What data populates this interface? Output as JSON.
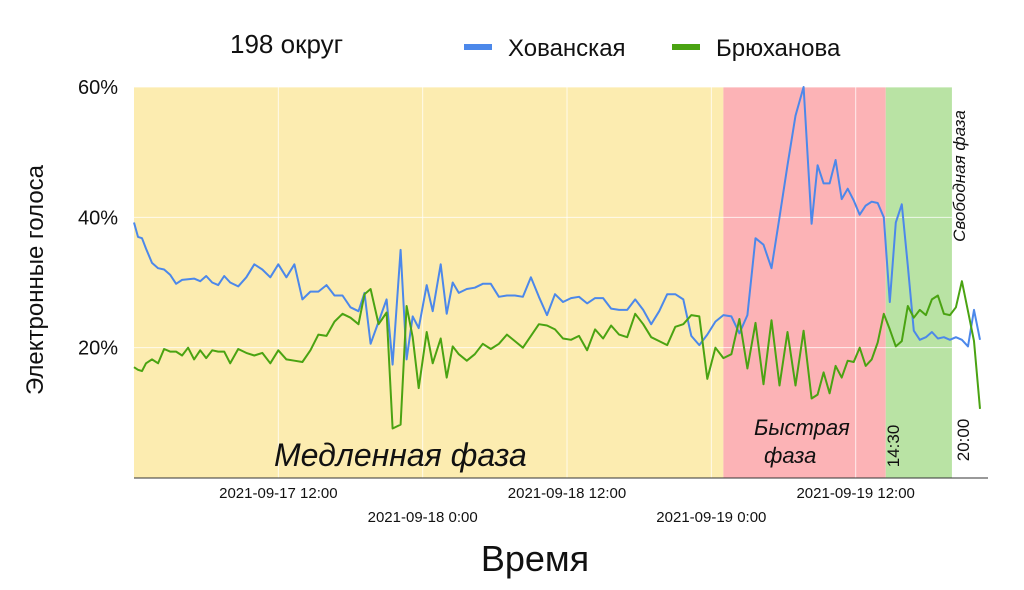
{
  "chart_data": {
    "type": "line",
    "title": "198 округ",
    "xlabel": "Время",
    "ylabel": "Электронные голоса",
    "ylim": [
      0,
      60
    ],
    "x_start": "2021-09-17 00:00",
    "x_end": "2021-09-19 23:00",
    "yticks": [
      "60%",
      "40%",
      "20%"
    ],
    "ytick_values": [
      60,
      40,
      20
    ],
    "xticks": [
      {
        "label": "2021-09-17 12:00",
        "x": "2021-09-17 12:00",
        "row": 1
      },
      {
        "label": "2021-09-18 0:00",
        "x": "2021-09-18 00:00",
        "row": 2
      },
      {
        "label": "2021-09-18 12:00",
        "x": "2021-09-18 12:00",
        "row": 1
      },
      {
        "label": "2021-09-19 0:00",
        "x": "2021-09-19 00:00",
        "row": 2
      },
      {
        "label": "2021-09-19 12:00",
        "x": "2021-09-19 12:00",
        "row": 1
      }
    ],
    "legend": {
      "position": "top"
    },
    "phases": [
      {
        "label": "Медленная фаза",
        "from": "2021-09-17 00:00",
        "to": "2021-09-19 01:00",
        "color": "#fcecb0"
      },
      {
        "label_lines": [
          "Быстрая",
          "фаза"
        ],
        "from": "2021-09-19 01:00",
        "to": "2021-09-19 14:30",
        "color": "#fcb3b6",
        "marker": "14:30"
      },
      {
        "label": "Свободная фаза",
        "from": "2021-09-19 14:30",
        "to": "2021-09-19 20:00",
        "color": "#b9e3a4",
        "marker": "20:00"
      }
    ],
    "series": [
      {
        "name": "Хованская",
        "color": "#4c88ea",
        "points": [
          [
            "2021-09-17 00:00",
            39.2
          ],
          [
            "2021-09-17 00:20",
            37.0
          ],
          [
            "2021-09-17 00:40",
            36.8
          ],
          [
            "2021-09-17 01:00",
            35.2
          ],
          [
            "2021-09-17 01:30",
            33.0
          ],
          [
            "2021-09-17 02:00",
            32.2
          ],
          [
            "2021-09-17 02:30",
            32.0
          ],
          [
            "2021-09-17 03:00",
            31.2
          ],
          [
            "2021-09-17 03:30",
            29.8
          ],
          [
            "2021-09-17 04:00",
            30.4
          ],
          [
            "2021-09-17 05:00",
            30.6
          ],
          [
            "2021-09-17 05:30",
            30.2
          ],
          [
            "2021-09-17 06:00",
            31.0
          ],
          [
            "2021-09-17 06:30",
            30.0
          ],
          [
            "2021-09-17 07:00",
            29.6
          ],
          [
            "2021-09-17 07:30",
            31.0
          ],
          [
            "2021-09-17 08:00",
            30.0
          ],
          [
            "2021-09-17 08:40",
            29.4
          ],
          [
            "2021-09-17 09:20",
            30.8
          ],
          [
            "2021-09-17 10:00",
            32.8
          ],
          [
            "2021-09-17 10:40",
            32.0
          ],
          [
            "2021-09-17 11:20",
            30.8
          ],
          [
            "2021-09-17 12:00",
            32.8
          ],
          [
            "2021-09-17 12:40",
            30.8
          ],
          [
            "2021-09-17 13:20",
            32.8
          ],
          [
            "2021-09-17 14:00",
            27.4
          ],
          [
            "2021-09-17 14:40",
            28.6
          ],
          [
            "2021-09-17 15:20",
            28.6
          ],
          [
            "2021-09-17 16:00",
            29.6
          ],
          [
            "2021-09-17 16:40",
            28.0
          ],
          [
            "2021-09-17 17:20",
            28.0
          ],
          [
            "2021-09-17 18:00",
            26.2
          ],
          [
            "2021-09-17 18:40",
            25.6
          ],
          [
            "2021-09-17 19:10",
            28.4
          ],
          [
            "2021-09-17 19:40",
            20.6
          ],
          [
            "2021-09-17 20:20",
            24.0
          ],
          [
            "2021-09-17 21:00",
            27.4
          ],
          [
            "2021-09-17 21:30",
            17.4
          ],
          [
            "2021-09-17 22:10",
            35.0
          ],
          [
            "2021-09-17 22:40",
            18.2
          ],
          [
            "2021-09-17 23:10",
            24.8
          ],
          [
            "2021-09-17 23:40",
            23.0
          ],
          [
            "2021-09-18 00:20",
            29.6
          ],
          [
            "2021-09-18 00:50",
            25.6
          ],
          [
            "2021-09-18 01:30",
            32.8
          ],
          [
            "2021-09-18 02:00",
            25.2
          ],
          [
            "2021-09-18 02:30",
            30.0
          ],
          [
            "2021-09-18 03:00",
            28.4
          ],
          [
            "2021-09-18 03:40",
            29.0
          ],
          [
            "2021-09-18 04:20",
            29.2
          ],
          [
            "2021-09-18 05:00",
            29.8
          ],
          [
            "2021-09-18 05:40",
            29.8
          ],
          [
            "2021-09-18 06:20",
            27.8
          ],
          [
            "2021-09-18 07:00",
            28.0
          ],
          [
            "2021-09-18 07:40",
            28.0
          ],
          [
            "2021-09-18 08:20",
            27.8
          ],
          [
            "2021-09-18 09:00",
            30.8
          ],
          [
            "2021-09-18 09:40",
            27.8
          ],
          [
            "2021-09-18 10:20",
            25.0
          ],
          [
            "2021-09-18 11:00",
            28.2
          ],
          [
            "2021-09-18 11:40",
            27.0
          ],
          [
            "2021-09-18 12:20",
            27.6
          ],
          [
            "2021-09-18 13:00",
            27.8
          ],
          [
            "2021-09-18 13:40",
            26.8
          ],
          [
            "2021-09-18 14:20",
            27.6
          ],
          [
            "2021-09-18 15:00",
            27.6
          ],
          [
            "2021-09-18 15:40",
            26.0
          ],
          [
            "2021-09-18 16:20",
            25.8
          ],
          [
            "2021-09-18 17:00",
            25.8
          ],
          [
            "2021-09-18 17:40",
            27.4
          ],
          [
            "2021-09-18 18:20",
            25.8
          ],
          [
            "2021-09-18 19:00",
            23.6
          ],
          [
            "2021-09-18 19:40",
            25.6
          ],
          [
            "2021-09-18 20:20",
            28.2
          ],
          [
            "2021-09-18 21:00",
            28.2
          ],
          [
            "2021-09-18 21:40",
            27.4
          ],
          [
            "2021-09-18 22:20",
            21.8
          ],
          [
            "2021-09-18 23:00",
            20.4
          ],
          [
            "2021-09-18 23:40",
            22.0
          ],
          [
            "2021-09-19 00:20",
            24.0
          ],
          [
            "2021-09-19 01:00",
            25.0
          ],
          [
            "2021-09-19 01:40",
            24.8
          ],
          [
            "2021-09-19 02:20",
            22.2
          ],
          [
            "2021-09-19 03:00",
            25.0
          ],
          [
            "2021-09-19 03:40",
            36.8
          ],
          [
            "2021-09-19 04:20",
            35.8
          ],
          [
            "2021-09-19 05:00",
            32.2
          ],
          [
            "2021-09-19 05:40",
            40.0
          ],
          [
            "2021-09-19 06:20",
            48.0
          ],
          [
            "2021-09-19 07:00",
            55.6
          ],
          [
            "2021-09-19 07:40",
            60.0
          ],
          [
            "2021-09-19 08:20",
            39.0
          ],
          [
            "2021-09-19 08:50",
            48.0
          ],
          [
            "2021-09-19 09:20",
            45.2
          ],
          [
            "2021-09-19 09:50",
            45.2
          ],
          [
            "2021-09-19 10:20",
            48.8
          ],
          [
            "2021-09-19 10:50",
            42.8
          ],
          [
            "2021-09-19 11:20",
            44.4
          ],
          [
            "2021-09-19 11:50",
            42.6
          ],
          [
            "2021-09-19 12:20",
            40.4
          ],
          [
            "2021-09-19 12:50",
            41.8
          ],
          [
            "2021-09-19 13:20",
            42.4
          ],
          [
            "2021-09-19 13:50",
            42.2
          ],
          [
            "2021-09-19 14:20",
            40.0
          ],
          [
            "2021-09-19 14:50",
            27.0
          ],
          [
            "2021-09-19 15:20",
            39.2
          ],
          [
            "2021-09-19 15:50",
            42.0
          ],
          [
            "2021-09-19 16:20",
            32.6
          ],
          [
            "2021-09-19 16:50",
            22.6
          ],
          [
            "2021-09-19 17:20",
            21.2
          ],
          [
            "2021-09-19 17:50",
            21.6
          ],
          [
            "2021-09-19 18:20",
            22.4
          ],
          [
            "2021-09-19 18:50",
            21.4
          ],
          [
            "2021-09-19 19:20",
            21.6
          ],
          [
            "2021-09-19 19:50",
            21.2
          ],
          [
            "2021-09-19 20:20",
            21.6
          ],
          [
            "2021-09-19 20:50",
            21.2
          ],
          [
            "2021-09-19 21:20",
            20.2
          ],
          [
            "2021-09-19 21:50",
            25.8
          ],
          [
            "2021-09-19 22:20",
            21.2
          ]
        ]
      },
      {
        "name": "Брюханова",
        "color": "#4aa312",
        "points": [
          [
            "2021-09-17 00:00",
            17.0
          ],
          [
            "2021-09-17 00:20",
            16.6
          ],
          [
            "2021-09-17 00:40",
            16.4
          ],
          [
            "2021-09-17 01:00",
            17.6
          ],
          [
            "2021-09-17 01:30",
            18.2
          ],
          [
            "2021-09-17 02:00",
            17.6
          ],
          [
            "2021-09-17 02:30",
            19.8
          ],
          [
            "2021-09-17 03:00",
            19.4
          ],
          [
            "2021-09-17 03:30",
            19.4
          ],
          [
            "2021-09-17 04:00",
            18.8
          ],
          [
            "2021-09-17 04:30",
            20.0
          ],
          [
            "2021-09-17 05:00",
            18.2
          ],
          [
            "2021-09-17 05:30",
            19.6
          ],
          [
            "2021-09-17 06:00",
            18.4
          ],
          [
            "2021-09-17 06:30",
            19.6
          ],
          [
            "2021-09-17 07:00",
            19.4
          ],
          [
            "2021-09-17 07:30",
            19.4
          ],
          [
            "2021-09-17 08:00",
            17.6
          ],
          [
            "2021-09-17 08:40",
            19.8
          ],
          [
            "2021-09-17 09:20",
            19.2
          ],
          [
            "2021-09-17 10:00",
            18.8
          ],
          [
            "2021-09-17 10:40",
            19.2
          ],
          [
            "2021-09-17 11:20",
            17.6
          ],
          [
            "2021-09-17 12:00",
            19.6
          ],
          [
            "2021-09-17 12:40",
            18.2
          ],
          [
            "2021-09-17 13:20",
            18.0
          ],
          [
            "2021-09-17 14:00",
            17.8
          ],
          [
            "2021-09-17 14:40",
            19.6
          ],
          [
            "2021-09-17 15:20",
            22.0
          ],
          [
            "2021-09-17 16:00",
            21.8
          ],
          [
            "2021-09-17 16:40",
            24.0
          ],
          [
            "2021-09-17 17:20",
            25.2
          ],
          [
            "2021-09-17 18:00",
            24.6
          ],
          [
            "2021-09-17 18:40",
            23.6
          ],
          [
            "2021-09-17 19:10",
            28.2
          ],
          [
            "2021-09-17 19:40",
            29.0
          ],
          [
            "2021-09-17 20:20",
            23.6
          ],
          [
            "2021-09-17 21:00",
            25.4
          ],
          [
            "2021-09-17 21:30",
            7.6
          ],
          [
            "2021-09-17 22:10",
            8.2
          ],
          [
            "2021-09-17 22:40",
            26.4
          ],
          [
            "2021-09-17 23:10",
            21.6
          ],
          [
            "2021-09-17 23:40",
            13.8
          ],
          [
            "2021-09-18 00:20",
            22.4
          ],
          [
            "2021-09-18 00:50",
            17.6
          ],
          [
            "2021-09-18 01:30",
            21.4
          ],
          [
            "2021-09-18 02:00",
            15.4
          ],
          [
            "2021-09-18 02:30",
            20.2
          ],
          [
            "2021-09-18 03:00",
            19.0
          ],
          [
            "2021-09-18 03:40",
            18.0
          ],
          [
            "2021-09-18 04:20",
            19.0
          ],
          [
            "2021-09-18 05:00",
            20.6
          ],
          [
            "2021-09-18 05:40",
            19.8
          ],
          [
            "2021-09-18 06:20",
            20.6
          ],
          [
            "2021-09-18 07:00",
            22.0
          ],
          [
            "2021-09-18 07:40",
            21.0
          ],
          [
            "2021-09-18 08:20",
            20.0
          ],
          [
            "2021-09-18 09:00",
            21.8
          ],
          [
            "2021-09-18 09:40",
            23.6
          ],
          [
            "2021-09-18 10:20",
            23.4
          ],
          [
            "2021-09-18 11:00",
            22.8
          ],
          [
            "2021-09-18 11:40",
            21.4
          ],
          [
            "2021-09-18 12:20",
            21.2
          ],
          [
            "2021-09-18 13:00",
            21.8
          ],
          [
            "2021-09-18 13:40",
            19.6
          ],
          [
            "2021-09-18 14:20",
            22.8
          ],
          [
            "2021-09-18 15:00",
            21.4
          ],
          [
            "2021-09-18 15:40",
            23.4
          ],
          [
            "2021-09-18 16:20",
            22.0
          ],
          [
            "2021-09-18 17:00",
            21.6
          ],
          [
            "2021-09-18 17:40",
            25.2
          ],
          [
            "2021-09-18 18:20",
            23.6
          ],
          [
            "2021-09-18 19:00",
            21.6
          ],
          [
            "2021-09-18 19:40",
            21.0
          ],
          [
            "2021-09-18 20:20",
            20.4
          ],
          [
            "2021-09-18 21:00",
            23.2
          ],
          [
            "2021-09-18 21:40",
            23.6
          ],
          [
            "2021-09-18 22:20",
            25.0
          ],
          [
            "2021-09-18 23:00",
            24.8
          ],
          [
            "2021-09-18 23:40",
            15.2
          ],
          [
            "2021-09-19 00:20",
            20.0
          ],
          [
            "2021-09-19 01:00",
            18.4
          ],
          [
            "2021-09-19 01:40",
            19.0
          ],
          [
            "2021-09-19 02:20",
            24.4
          ],
          [
            "2021-09-19 03:00",
            16.8
          ],
          [
            "2021-09-19 03:40",
            23.8
          ],
          [
            "2021-09-19 04:20",
            14.4
          ],
          [
            "2021-09-19 05:00",
            24.2
          ],
          [
            "2021-09-19 05:40",
            14.2
          ],
          [
            "2021-09-19 06:20",
            22.4
          ],
          [
            "2021-09-19 07:00",
            14.2
          ],
          [
            "2021-09-19 07:40",
            22.6
          ],
          [
            "2021-09-19 08:20",
            12.2
          ],
          [
            "2021-09-19 08:50",
            12.8
          ],
          [
            "2021-09-19 09:20",
            16.2
          ],
          [
            "2021-09-19 09:50",
            13.0
          ],
          [
            "2021-09-19 10:20",
            17.2
          ],
          [
            "2021-09-19 10:50",
            15.4
          ],
          [
            "2021-09-19 11:20",
            18.0
          ],
          [
            "2021-09-19 11:50",
            17.8
          ],
          [
            "2021-09-19 12:20",
            20.0
          ],
          [
            "2021-09-19 12:50",
            17.2
          ],
          [
            "2021-09-19 13:20",
            18.2
          ],
          [
            "2021-09-19 13:50",
            20.8
          ],
          [
            "2021-09-19 14:20",
            25.2
          ],
          [
            "2021-09-19 14:50",
            22.8
          ],
          [
            "2021-09-19 15:20",
            20.2
          ],
          [
            "2021-09-19 15:50",
            21.0
          ],
          [
            "2021-09-19 16:20",
            26.4
          ],
          [
            "2021-09-19 16:50",
            24.6
          ],
          [
            "2021-09-19 17:20",
            25.8
          ],
          [
            "2021-09-19 17:50",
            25.0
          ],
          [
            "2021-09-19 18:20",
            27.4
          ],
          [
            "2021-09-19 18:50",
            28.0
          ],
          [
            "2021-09-19 19:20",
            25.2
          ],
          [
            "2021-09-19 19:50",
            25.0
          ],
          [
            "2021-09-19 20:20",
            26.2
          ],
          [
            "2021-09-19 20:50",
            30.2
          ],
          [
            "2021-09-19 21:20",
            25.6
          ],
          [
            "2021-09-19 21:50",
            21.0
          ],
          [
            "2021-09-19 22:20",
            10.6
          ]
        ]
      }
    ]
  }
}
